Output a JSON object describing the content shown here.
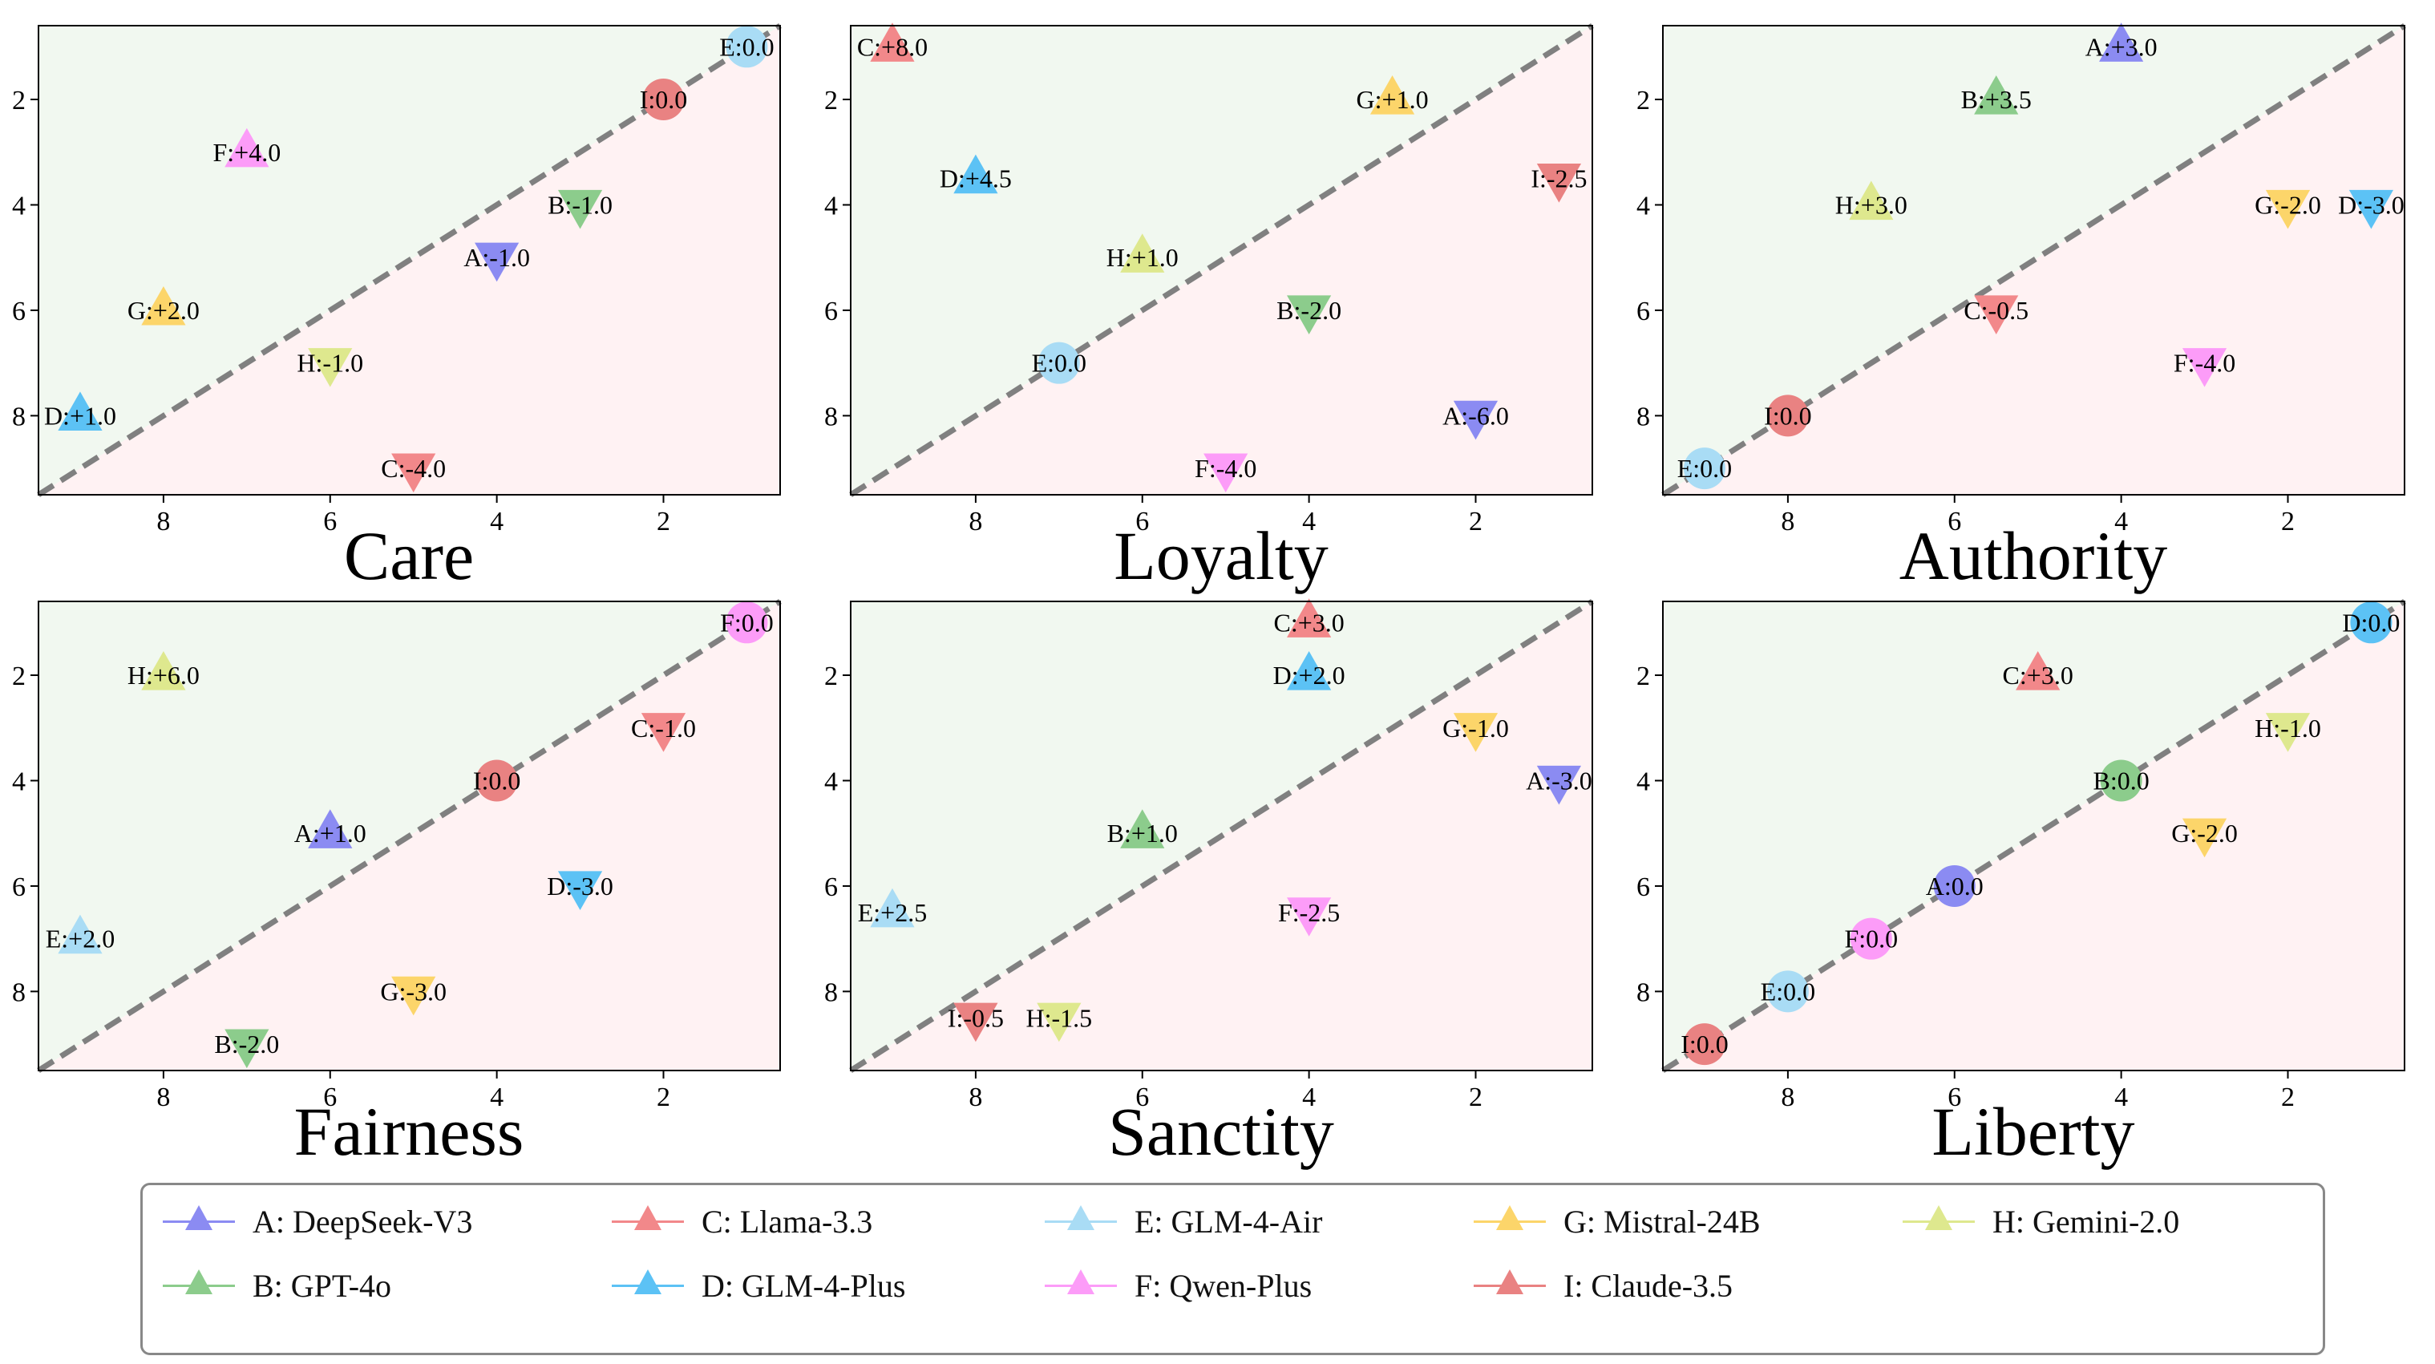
{
  "chart_data": {
    "type": "scatter",
    "description_axes": "x axis reversed (9 to 1), y axis reversed (1 to 9); dashed y=x diagonal; upper-left region green, lower-right region red",
    "axis": {
      "xlim": [
        9.5,
        0.6
      ],
      "ylim": [
        9.5,
        0.6
      ],
      "xticks": [
        8,
        6,
        4,
        2
      ],
      "yticks": [
        2,
        4,
        6,
        8
      ]
    },
    "colors": {
      "A": "#8b8bf2",
      "B": "#8ccc8c",
      "C": "#f2888a",
      "D": "#5cc2f5",
      "E": "#a9dcf5",
      "F": "#fc9cf8",
      "G": "#fcd56a",
      "H": "#dee88e",
      "I": "#e98282",
      "upper_region": "#f1f8f0",
      "lower_region": "#fff2f3",
      "diagonal": "#808080"
    },
    "legend": [
      {
        "key": "A",
        "label": "A: DeepSeek-V3"
      },
      {
        "key": "B",
        "label": "B: GPT-4o"
      },
      {
        "key": "C",
        "label": "C: Llama-3.3"
      },
      {
        "key": "D",
        "label": "D: GLM-4-Plus"
      },
      {
        "key": "E",
        "label": "E: GLM-4-Air"
      },
      {
        "key": "F",
        "label": "F: Qwen-Plus"
      },
      {
        "key": "G",
        "label": "G: Mistral-24B"
      },
      {
        "key": "H",
        "label": "H: Gemini-2.0"
      },
      {
        "key": "I",
        "label": "I: Claude-3.5"
      }
    ],
    "panels": [
      {
        "title": "Care",
        "points": [
          {
            "key": "E",
            "x": 1,
            "y": 1,
            "marker": "circle",
            "label": "E:0.0"
          },
          {
            "key": "I",
            "x": 2,
            "y": 2,
            "marker": "circle",
            "label": "I:0.0"
          },
          {
            "key": "F",
            "x": 7,
            "y": 3,
            "marker": "up",
            "label": "F:+4.0"
          },
          {
            "key": "B",
            "x": 3,
            "y": 4,
            "marker": "down",
            "label": "B:-1.0"
          },
          {
            "key": "A",
            "x": 4,
            "y": 5,
            "marker": "down",
            "label": "A:-1.0"
          },
          {
            "key": "G",
            "x": 8,
            "y": 6,
            "marker": "up",
            "label": "G:+2.0"
          },
          {
            "key": "H",
            "x": 6,
            "y": 7,
            "marker": "down",
            "label": "H:-1.0"
          },
          {
            "key": "D",
            "x": 9,
            "y": 8,
            "marker": "up",
            "label": "D:+1.0"
          },
          {
            "key": "C",
            "x": 5,
            "y": 9,
            "marker": "down",
            "label": "C:-4.0"
          }
        ]
      },
      {
        "title": "Loyalty",
        "points": [
          {
            "key": "C",
            "x": 9,
            "y": 1,
            "marker": "up",
            "label": "C:+8.0"
          },
          {
            "key": "G",
            "x": 3,
            "y": 2,
            "marker": "up",
            "label": "G:+1.0"
          },
          {
            "key": "I",
            "x": 1,
            "y": 3.5,
            "marker": "down",
            "label": "I:-2.5"
          },
          {
            "key": "D",
            "x": 8,
            "y": 3.5,
            "marker": "up",
            "label": "D:+4.5"
          },
          {
            "key": "H",
            "x": 6,
            "y": 5,
            "marker": "up",
            "label": "H:+1.0"
          },
          {
            "key": "B",
            "x": 4,
            "y": 6,
            "marker": "down",
            "label": "B:-2.0"
          },
          {
            "key": "E",
            "x": 7,
            "y": 7,
            "marker": "circle",
            "label": "E:0.0"
          },
          {
            "key": "A",
            "x": 2,
            "y": 8,
            "marker": "down",
            "label": "A:-6.0"
          },
          {
            "key": "F",
            "x": 5,
            "y": 9,
            "marker": "down",
            "label": "F:-4.0"
          }
        ]
      },
      {
        "title": "Authority",
        "points": [
          {
            "key": "A",
            "x": 4,
            "y": 1,
            "marker": "up",
            "label": "A:+3.0"
          },
          {
            "key": "B",
            "x": 5.5,
            "y": 2,
            "marker": "up",
            "label": "B:+3.5"
          },
          {
            "key": "H",
            "x": 7,
            "y": 4,
            "marker": "up",
            "label": "H:+3.0"
          },
          {
            "key": "G",
            "x": 2,
            "y": 4,
            "marker": "down",
            "label": "G:-2.0"
          },
          {
            "key": "D",
            "x": 1,
            "y": 4,
            "marker": "down",
            "label": "D:-3.0"
          },
          {
            "key": "C",
            "x": 5.5,
            "y": 6,
            "marker": "down",
            "label": "C:-0.5"
          },
          {
            "key": "F",
            "x": 3,
            "y": 7,
            "marker": "down",
            "label": "F:-4.0"
          },
          {
            "key": "I",
            "x": 8,
            "y": 8,
            "marker": "circle",
            "label": "I:0.0"
          },
          {
            "key": "E",
            "x": 9,
            "y": 9,
            "marker": "circle",
            "label": "E:0.0"
          }
        ]
      },
      {
        "title": "Fairness",
        "points": [
          {
            "key": "F",
            "x": 1,
            "y": 1,
            "marker": "circle",
            "label": "F:0.0"
          },
          {
            "key": "H",
            "x": 8,
            "y": 2,
            "marker": "up",
            "label": "H:+6.0"
          },
          {
            "key": "C",
            "x": 2,
            "y": 3,
            "marker": "down",
            "label": "C:-1.0"
          },
          {
            "key": "I",
            "x": 4,
            "y": 4,
            "marker": "circle",
            "label": "I:0.0"
          },
          {
            "key": "A",
            "x": 6,
            "y": 5,
            "marker": "up",
            "label": "A:+1.0"
          },
          {
            "key": "D",
            "x": 3,
            "y": 6,
            "marker": "down",
            "label": "D:-3.0"
          },
          {
            "key": "E",
            "x": 9,
            "y": 7,
            "marker": "up",
            "label": "E:+2.0"
          },
          {
            "key": "G",
            "x": 5,
            "y": 8,
            "marker": "down",
            "label": "G:-3.0"
          },
          {
            "key": "B",
            "x": 7,
            "y": 9,
            "marker": "down",
            "label": "B:-2.0"
          }
        ]
      },
      {
        "title": "Sanctity",
        "points": [
          {
            "key": "C",
            "x": 4,
            "y": 1,
            "marker": "up",
            "label": "C:+3.0"
          },
          {
            "key": "D",
            "x": 4,
            "y": 2,
            "marker": "up",
            "label": "D:+2.0"
          },
          {
            "key": "G",
            "x": 2,
            "y": 3,
            "marker": "down",
            "label": "G:-1.0"
          },
          {
            "key": "A",
            "x": 1,
            "y": 4,
            "marker": "down",
            "label": "A:-3.0"
          },
          {
            "key": "B",
            "x": 6,
            "y": 5,
            "marker": "up",
            "label": "B:+1.0"
          },
          {
            "key": "E",
            "x": 9,
            "y": 6.5,
            "marker": "up",
            "label": "E:+2.5"
          },
          {
            "key": "F",
            "x": 4,
            "y": 6.5,
            "marker": "down",
            "label": "F:-2.5"
          },
          {
            "key": "I",
            "x": 8,
            "y": 8.5,
            "marker": "down",
            "label": "I:-0.5"
          },
          {
            "key": "H",
            "x": 7,
            "y": 8.5,
            "marker": "down",
            "label": "H:-1.5"
          }
        ]
      },
      {
        "title": "Liberty",
        "points": [
          {
            "key": "D",
            "x": 1,
            "y": 1,
            "marker": "circle",
            "label": "D:0.0"
          },
          {
            "key": "C",
            "x": 5,
            "y": 2,
            "marker": "up",
            "label": "C:+3.0"
          },
          {
            "key": "H",
            "x": 2,
            "y": 3,
            "marker": "down",
            "label": "H:-1.0"
          },
          {
            "key": "B",
            "x": 4,
            "y": 4,
            "marker": "circle",
            "label": "B:0.0"
          },
          {
            "key": "G",
            "x": 3,
            "y": 5,
            "marker": "down",
            "label": "G:-2.0"
          },
          {
            "key": "A",
            "x": 6,
            "y": 6,
            "marker": "circle",
            "label": "A:0.0"
          },
          {
            "key": "F",
            "x": 7,
            "y": 7,
            "marker": "circle",
            "label": "F:0.0"
          },
          {
            "key": "E",
            "x": 8,
            "y": 8,
            "marker": "circle",
            "label": "E:0.0"
          },
          {
            "key": "I",
            "x": 9,
            "y": 9,
            "marker": "circle",
            "label": "I:0.0"
          }
        ]
      }
    ]
  }
}
